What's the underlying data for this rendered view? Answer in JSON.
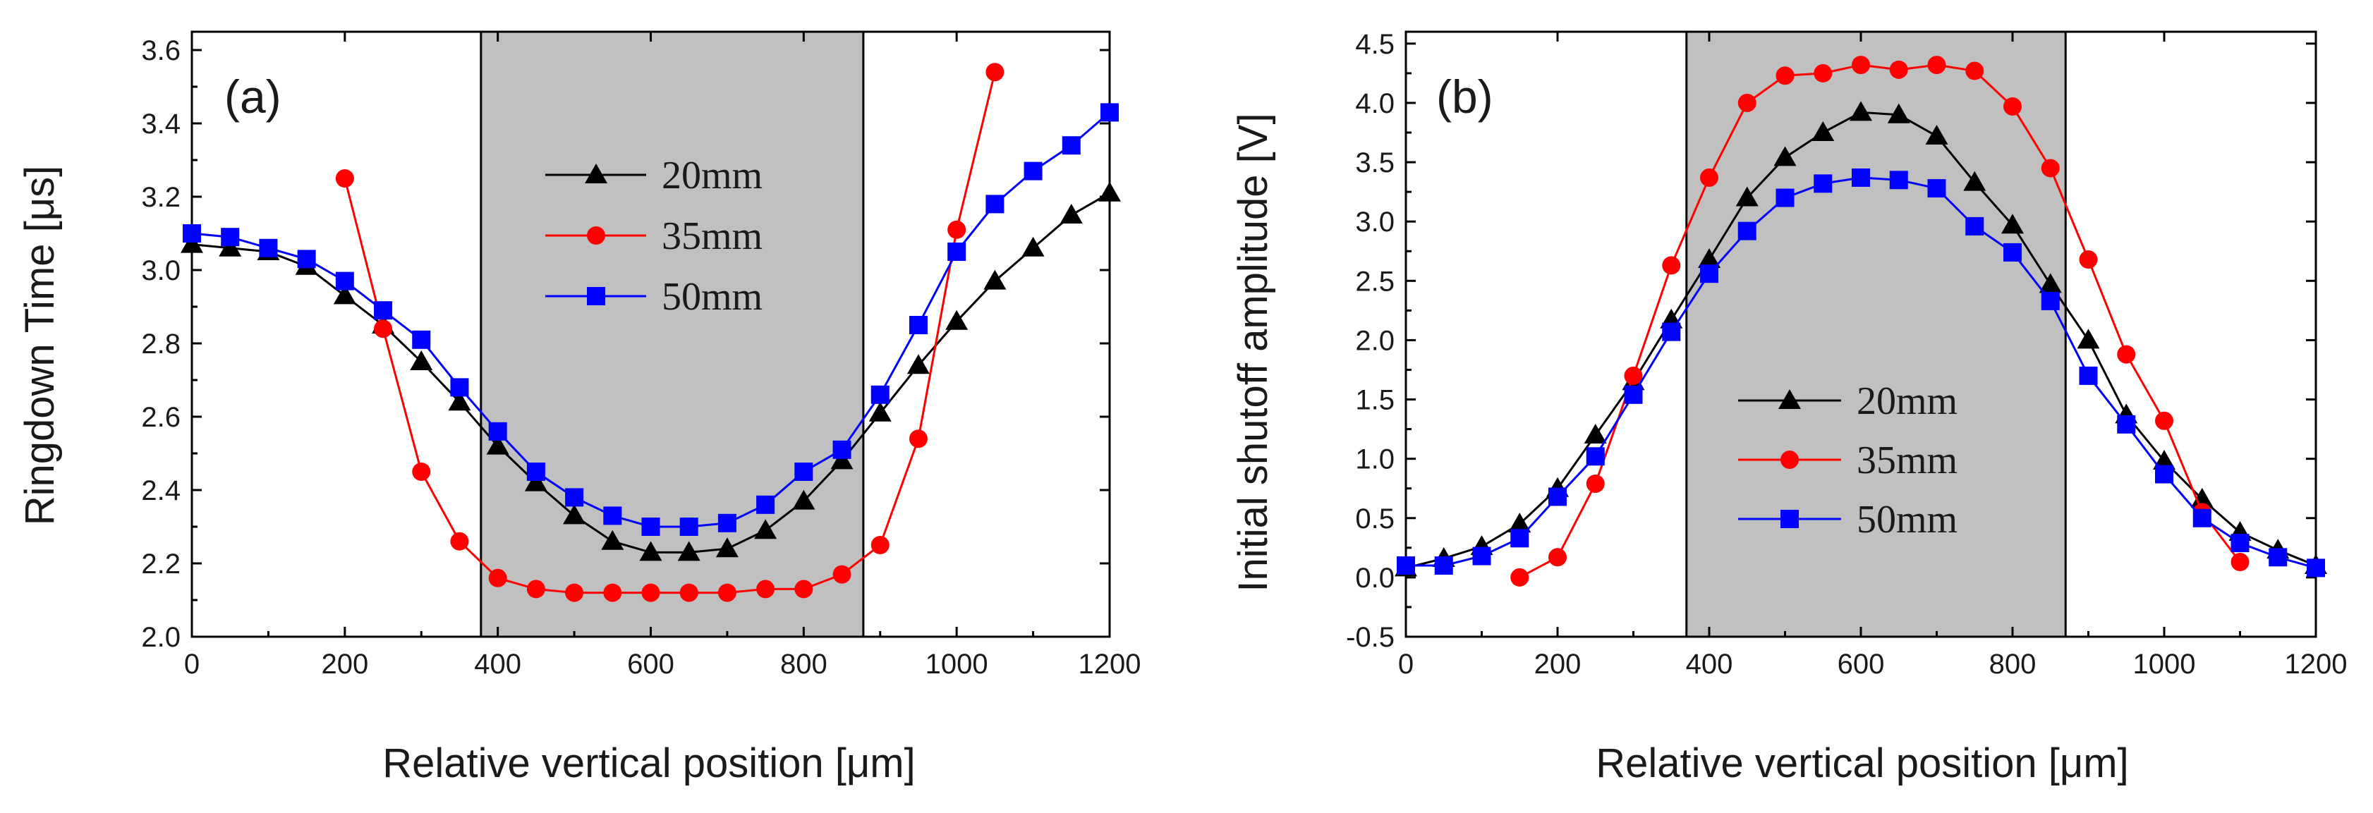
{
  "chart_data": [
    {
      "type": "line",
      "panel_label": "(a)",
      "xlabel": "Relative vertical position [μm]",
      "ylabel": "Ringdown Time [μs]",
      "xlim": [
        0,
        1200
      ],
      "ylim": [
        2.0,
        3.65
      ],
      "xticks": [
        0,
        200,
        400,
        600,
        800,
        1000,
        1200
      ],
      "yticks": [
        2.0,
        2.2,
        2.4,
        2.6,
        2.8,
        3.0,
        3.2,
        3.4,
        3.6
      ],
      "xtick_labels": [
        "0",
        "200",
        "400",
        "600",
        "800",
        "1000",
        "1200"
      ],
      "ytick_labels": [
        "2.0",
        "2.2",
        "2.4",
        "2.6",
        "2.8",
        "3.0",
        "3.2",
        "3.4",
        "3.6"
      ],
      "shaded_region": [
        378,
        878
      ],
      "legend_position": "upper-center",
      "series": [
        {
          "name": "20mm",
          "color": "#000000",
          "marker": "triangle",
          "x": [
            0,
            50,
            100,
            150,
            200,
            250,
            300,
            350,
            400,
            450,
            500,
            550,
            600,
            650,
            700,
            750,
            800,
            850,
            900,
            950,
            1000,
            1050,
            1100,
            1150,
            1200
          ],
          "y": [
            3.07,
            3.06,
            3.05,
            3.01,
            2.93,
            2.85,
            2.75,
            2.64,
            2.52,
            2.42,
            2.33,
            2.26,
            2.23,
            2.23,
            2.24,
            2.29,
            2.37,
            2.48,
            2.61,
            2.74,
            2.86,
            2.97,
            3.06,
            3.15,
            3.21
          ]
        },
        {
          "name": "35mm",
          "color": "#ff0000",
          "marker": "circle",
          "x": [
            200,
            250,
            300,
            350,
            400,
            450,
            500,
            550,
            600,
            650,
            700,
            750,
            800,
            850,
            900,
            950,
            1000,
            1050
          ],
          "y": [
            3.25,
            2.84,
            2.45,
            2.26,
            2.16,
            2.13,
            2.12,
            2.12,
            2.12,
            2.12,
            2.12,
            2.13,
            2.13,
            2.17,
            2.25,
            2.54,
            3.11,
            3.54
          ]
        },
        {
          "name": "50mm",
          "color": "#0000ff",
          "marker": "square",
          "x": [
            0,
            50,
            100,
            150,
            200,
            250,
            300,
            350,
            400,
            450,
            500,
            550,
            600,
            650,
            700,
            750,
            800,
            850,
            900,
            950,
            1000,
            1050,
            1100,
            1150,
            1200
          ],
          "y": [
            3.1,
            3.09,
            3.06,
            3.03,
            2.97,
            2.89,
            2.81,
            2.68,
            2.56,
            2.45,
            2.38,
            2.33,
            2.3,
            2.3,
            2.31,
            2.36,
            2.45,
            2.51,
            2.66,
            2.85,
            3.05,
            3.18,
            3.27,
            3.34,
            3.43
          ]
        }
      ]
    },
    {
      "type": "line",
      "panel_label": "(b)",
      "xlabel": "Relative vertical position [μm]",
      "ylabel": "Initial shutoff amplitude [V]",
      "xlim": [
        0,
        1200
      ],
      "ylim": [
        -0.5,
        4.6
      ],
      "xticks": [
        0,
        200,
        400,
        600,
        800,
        1000,
        1200
      ],
      "yticks": [
        -0.5,
        0.0,
        0.5,
        1.0,
        1.5,
        2.0,
        2.5,
        3.0,
        3.5,
        4.0,
        4.5
      ],
      "xtick_labels": [
        "0",
        "200",
        "400",
        "600",
        "800",
        "1000",
        "1200"
      ],
      "ytick_labels": [
        "-0.5",
        "0.0",
        "0.5",
        "1.0",
        "1.5",
        "2.0",
        "2.5",
        "3.0",
        "3.5",
        "4.0",
        "4.5"
      ],
      "shaded_region": [
        370,
        870
      ],
      "legend_position": "lower-center",
      "series": [
        {
          "name": "20mm",
          "color": "#000000",
          "marker": "triangle",
          "x": [
            0,
            50,
            100,
            150,
            200,
            250,
            300,
            350,
            400,
            450,
            500,
            550,
            600,
            650,
            700,
            750,
            800,
            850,
            900,
            950,
            1000,
            1050,
            1100,
            1150,
            1200
          ],
          "y": [
            0.08,
            0.16,
            0.26,
            0.45,
            0.75,
            1.2,
            1.65,
            2.17,
            2.68,
            3.2,
            3.54,
            3.75,
            3.92,
            3.9,
            3.72,
            3.33,
            2.97,
            2.47,
            2.0,
            1.37,
            0.98,
            0.66,
            0.38,
            0.23,
            0.1
          ]
        },
        {
          "name": "35mm",
          "color": "#ff0000",
          "marker": "circle",
          "x": [
            150,
            200,
            250,
            300,
            350,
            400,
            450,
            500,
            550,
            600,
            650,
            700,
            750,
            800,
            850,
            900,
            950,
            1000,
            1050,
            1100
          ],
          "y": [
            0.0,
            0.17,
            0.79,
            1.7,
            2.63,
            3.37,
            4.0,
            4.23,
            4.25,
            4.32,
            4.28,
            4.32,
            4.27,
            3.97,
            3.45,
            2.68,
            1.88,
            1.32,
            0.55,
            0.13
          ]
        },
        {
          "name": "50mm",
          "color": "#0000ff",
          "marker": "square",
          "x": [
            0,
            50,
            100,
            150,
            200,
            250,
            300,
            350,
            400,
            450,
            500,
            550,
            600,
            650,
            700,
            750,
            800,
            850,
            900,
            950,
            1000,
            1050,
            1100,
            1150,
            1200
          ],
          "y": [
            0.1,
            0.1,
            0.18,
            0.33,
            0.68,
            1.02,
            1.54,
            2.07,
            2.56,
            2.92,
            3.2,
            3.32,
            3.37,
            3.35,
            3.28,
            2.96,
            2.74,
            2.33,
            1.7,
            1.29,
            0.87,
            0.5,
            0.29,
            0.17,
            0.08
          ]
        }
      ]
    }
  ]
}
